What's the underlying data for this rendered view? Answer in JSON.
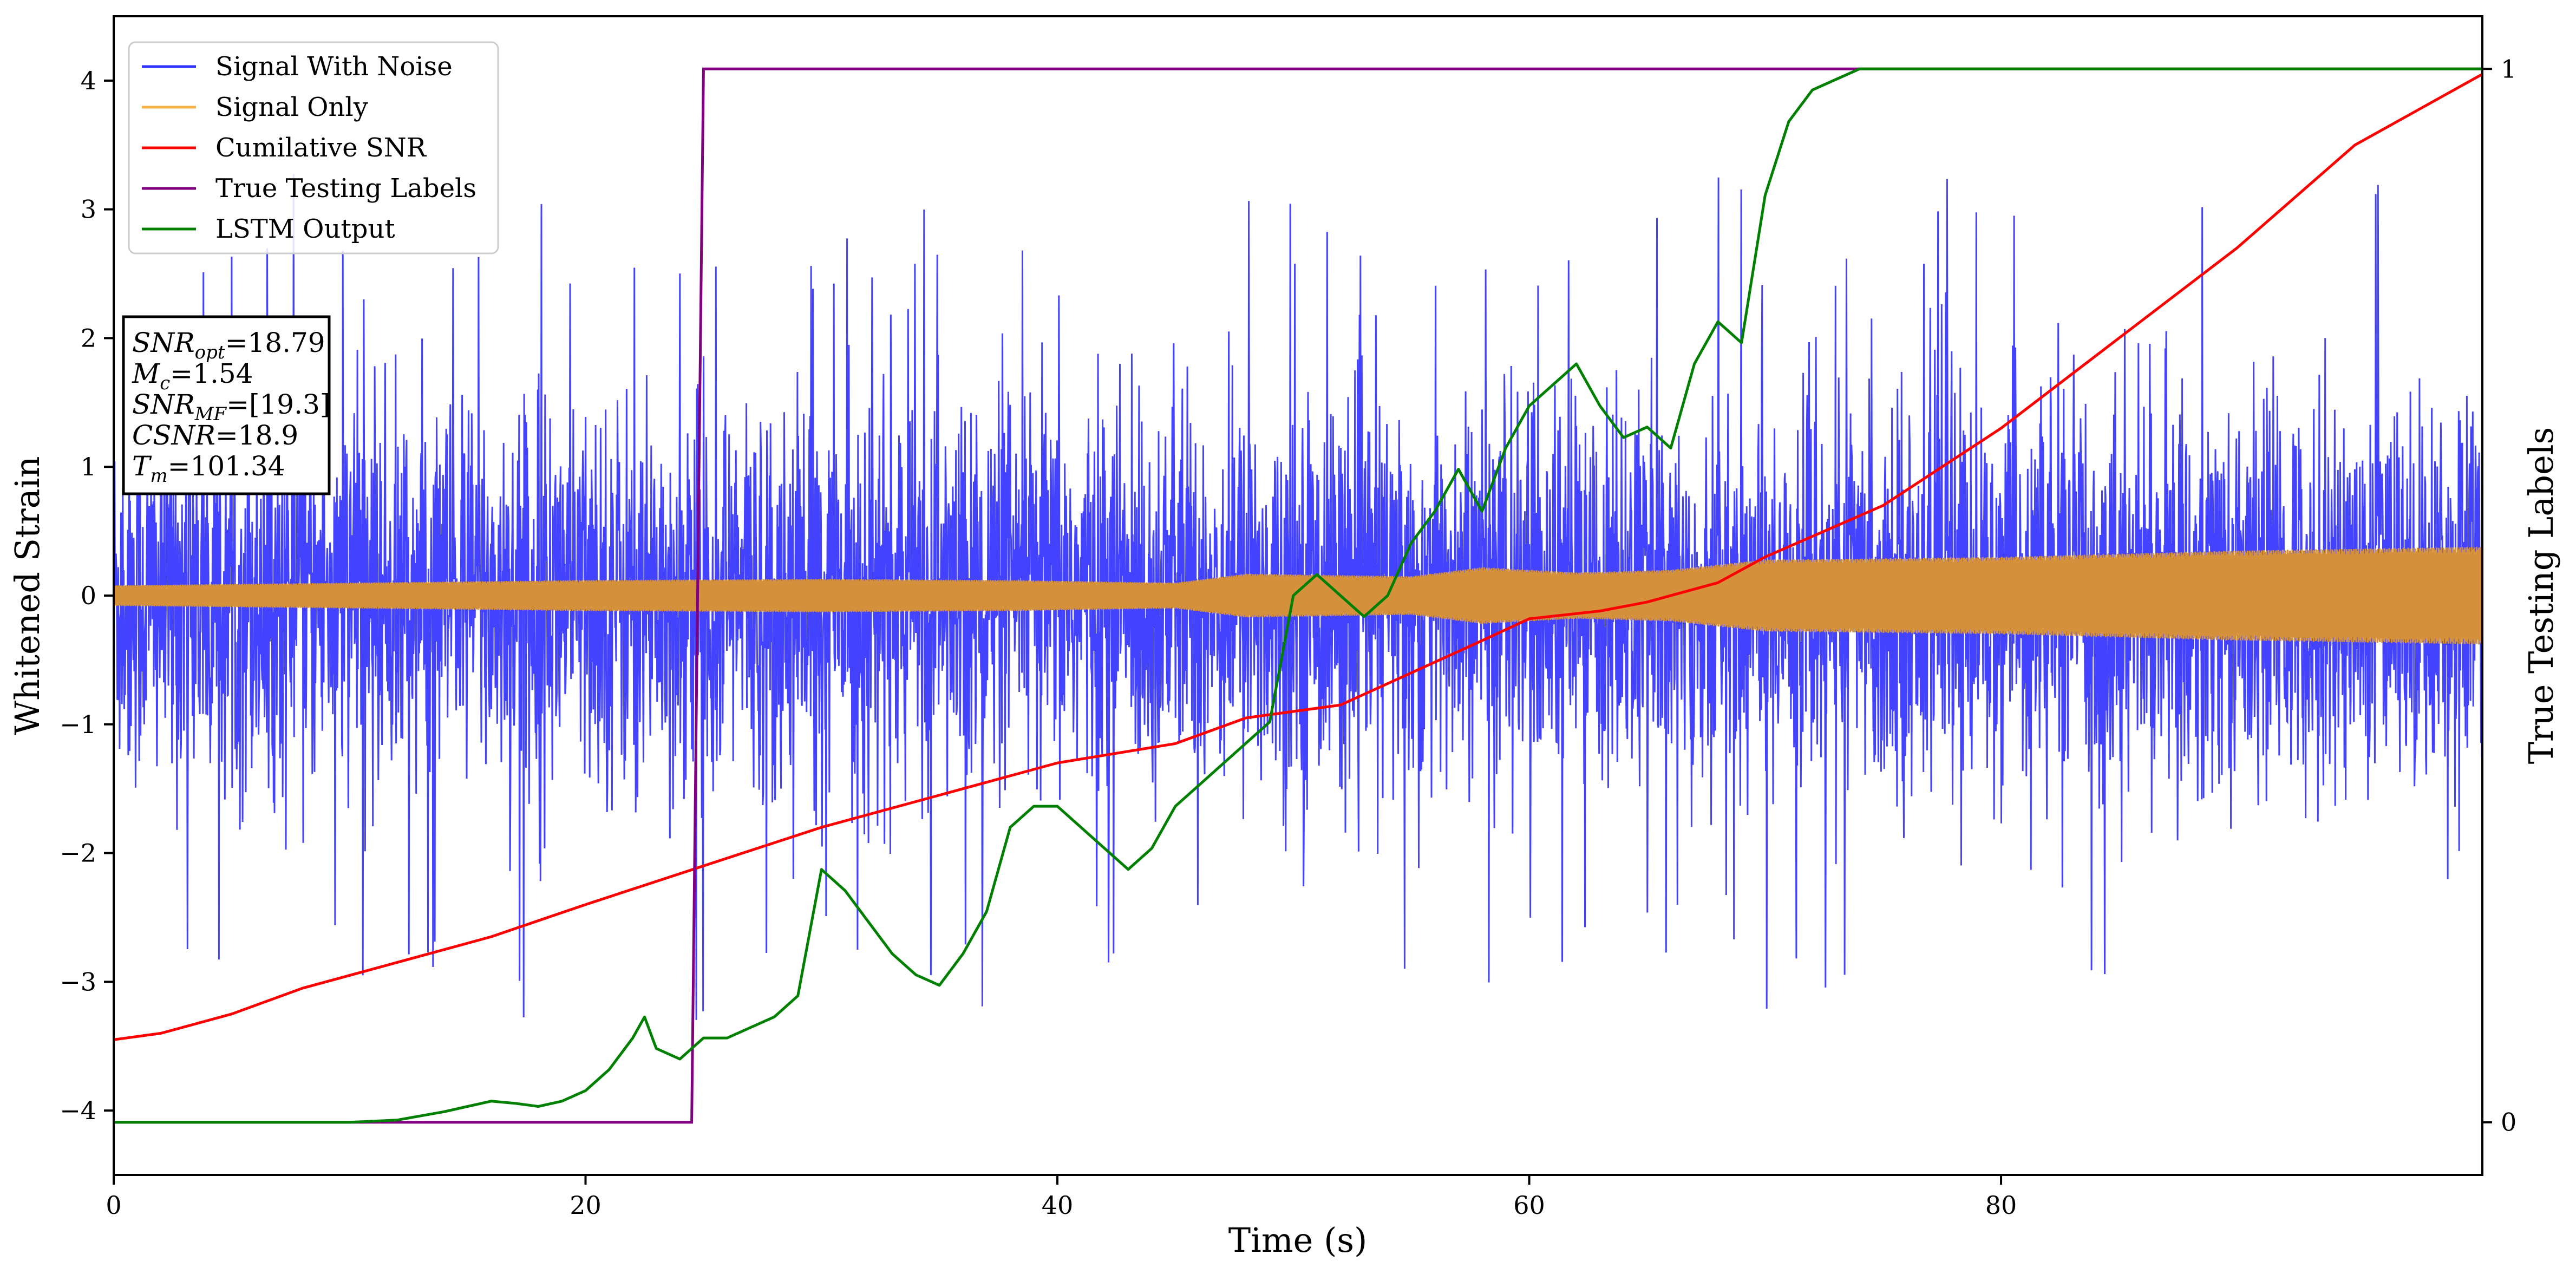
{
  "chart_data": {
    "type": "line",
    "xlabel": "Time (s)",
    "ylabel": "Whitened Strain",
    "ylabel_right": "True Testing Labels",
    "xlim": [
      0,
      100.4
    ],
    "ylim": [
      -4.5,
      4.5
    ],
    "ylim_right": [
      -0.05,
      1.05
    ],
    "x_ticks": [
      0,
      20,
      40,
      60,
      80
    ],
    "y_ticks": [
      -4,
      -3,
      -2,
      -1,
      0,
      1,
      2,
      3,
      4
    ],
    "y_ticks_right": [
      0,
      1
    ],
    "legend_position": "upper-left",
    "grid": false,
    "series": [
      {
        "name": "Signal With Noise",
        "color": "#3333ff",
        "description": "whitened noisy strain, dense oscillation roughly between -2.2 and +2.2 with spikes",
        "envelope": {
          "typical_amplitude": 1.3,
          "max": 3.9,
          "min": -4.1
        }
      },
      {
        "name": "Signal Only",
        "color": "#f5b041",
        "envelope_x": [
          0,
          10,
          20,
          30,
          38,
          45,
          48,
          55,
          58,
          62,
          66,
          70,
          80,
          90,
          100.4
        ],
        "envelope_amp": [
          0.08,
          0.1,
          0.12,
          0.13,
          0.12,
          0.1,
          0.17,
          0.15,
          0.22,
          0.18,
          0.2,
          0.28,
          0.3,
          0.35,
          0.38
        ]
      },
      {
        "name": "Cumilative SNR",
        "color": "#ff0000",
        "axis": "left",
        "x": [
          0,
          2,
          5,
          8,
          12,
          16,
          20,
          25,
          30,
          35,
          40,
          45,
          48,
          52,
          55,
          58,
          60,
          63,
          65,
          68,
          70,
          75,
          80,
          85,
          90,
          95,
          100.4
        ],
        "y": [
          -3.45,
          -3.4,
          -3.25,
          -3.05,
          -2.85,
          -2.65,
          -2.4,
          -2.1,
          -1.8,
          -1.55,
          -1.3,
          -1.15,
          -0.95,
          -0.85,
          -0.6,
          -0.35,
          -0.18,
          -0.12,
          -0.05,
          0.1,
          0.3,
          0.7,
          1.3,
          2.0,
          2.7,
          3.5,
          4.05
        ]
      },
      {
        "name": "True Testing Labels",
        "color": "#800080",
        "axis": "right",
        "x": [
          0,
          24.5,
          25.0,
          100.4
        ],
        "y": [
          0,
          0,
          1,
          1
        ]
      },
      {
        "name": "LSTM Output",
        "color": "#008000",
        "axis": "right",
        "x": [
          0,
          10,
          12,
          14,
          15,
          16,
          17,
          18,
          19,
          20,
          21,
          22,
          22.5,
          23,
          24,
          25,
          26,
          27,
          28,
          29,
          30,
          31,
          32,
          33,
          34,
          35,
          36,
          37,
          38,
          39,
          40,
          41,
          42,
          43,
          44,
          45,
          46,
          47,
          48,
          49,
          50,
          51,
          52,
          53,
          54,
          55,
          56,
          57,
          58,
          59,
          60,
          61,
          62,
          63,
          64,
          65,
          66,
          67,
          68,
          69,
          70,
          71,
          72,
          73,
          74,
          75,
          80,
          100.4
        ],
        "y": [
          0,
          0,
          0.002,
          0.01,
          0.015,
          0.02,
          0.018,
          0.015,
          0.02,
          0.03,
          0.05,
          0.08,
          0.1,
          0.07,
          0.06,
          0.08,
          0.08,
          0.09,
          0.1,
          0.12,
          0.24,
          0.22,
          0.19,
          0.16,
          0.14,
          0.13,
          0.16,
          0.2,
          0.28,
          0.3,
          0.3,
          0.28,
          0.26,
          0.24,
          0.26,
          0.3,
          0.32,
          0.34,
          0.36,
          0.38,
          0.5,
          0.52,
          0.5,
          0.48,
          0.5,
          0.55,
          0.58,
          0.62,
          0.58,
          0.64,
          0.68,
          0.7,
          0.72,
          0.68,
          0.65,
          0.66,
          0.64,
          0.72,
          0.76,
          0.74,
          0.88,
          0.95,
          0.98,
          0.99,
          1.0,
          1.0,
          1.0,
          1.0
        ]
      }
    ]
  },
  "info_box": {
    "lines": [
      {
        "main": "SNR",
        "sub": "opt",
        "value": "=18.79"
      },
      {
        "main": "M",
        "sub": "c",
        "value": "=1.54"
      },
      {
        "main": "SNR",
        "sub": "MF",
        "value": "=[19.3]"
      },
      {
        "main": "CSNR",
        "sub": "",
        "value": "=18.9"
      },
      {
        "main": "T",
        "sub": "m",
        "value": "=101.34"
      }
    ]
  }
}
